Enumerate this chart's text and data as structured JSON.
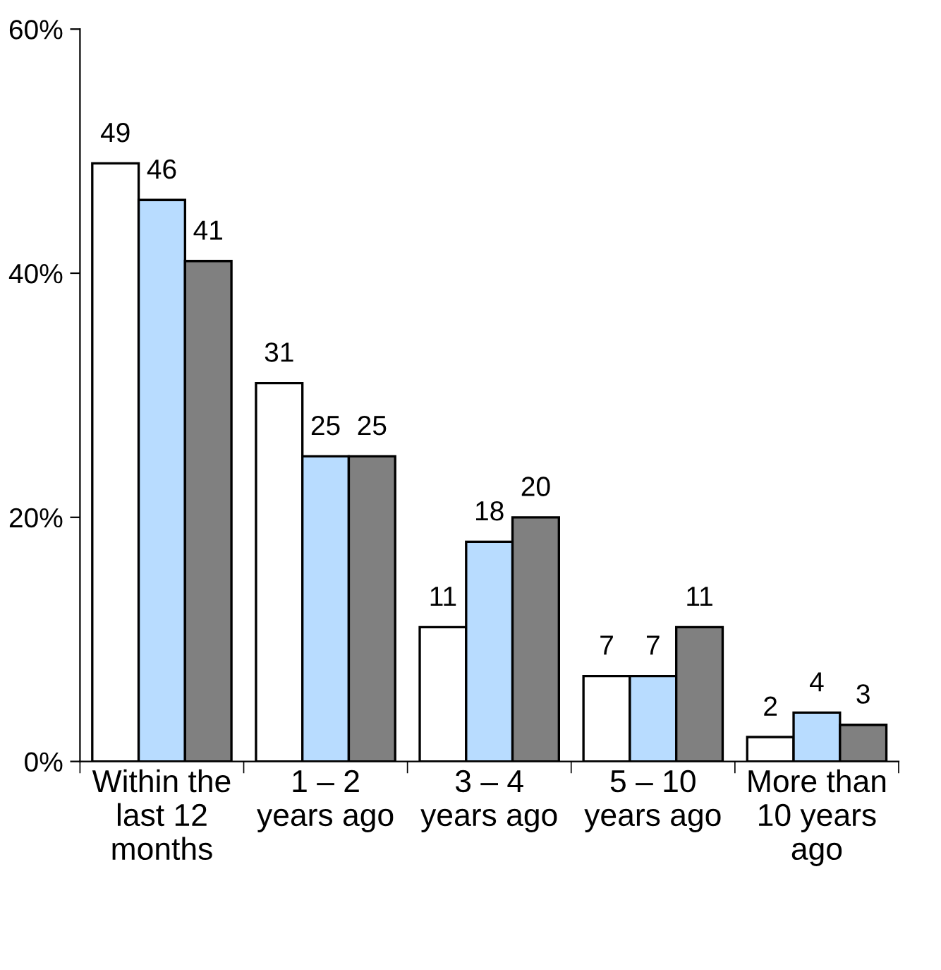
{
  "chart_data": {
    "type": "bar",
    "categories": [
      "Within the\nlast 12\nmonths",
      "1 – 2\nyears ago",
      "3 – 4\nyears ago",
      "5 – 10\nyears ago",
      "More than\n10 years\nago"
    ],
    "series": [
      {
        "color": "#ffffff",
        "values": [
          49,
          31,
          11,
          7,
          2
        ]
      },
      {
        "color": "#b8dcff",
        "values": [
          46,
          25,
          18,
          7,
          4
        ]
      },
      {
        "color": "#808080",
        "values": [
          41,
          25,
          20,
          11,
          3
        ]
      }
    ],
    "ylim": [
      0,
      60
    ],
    "yticks": [
      {
        "value": 0,
        "label": "0%"
      },
      {
        "value": 20,
        "label": "20%"
      },
      {
        "value": 40,
        "label": "40%"
      },
      {
        "value": 60,
        "label": "60%"
      }
    ],
    "grid": false,
    "data_labels": true
  }
}
